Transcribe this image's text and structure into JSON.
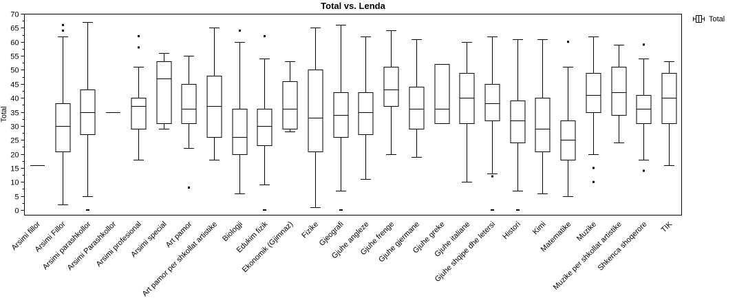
{
  "title": "Total vs. Lenda",
  "legend": {
    "label": "Total"
  },
  "chart_data": {
    "type": "boxplot",
    "title": "Total vs. Lenda",
    "xlabel": "",
    "ylabel": "Total",
    "ylim": [
      0,
      70
    ],
    "ytick_step": 5,
    "grid": false,
    "legend_position": "top-right",
    "categories": [
      "Arsimi fillor",
      "Arsimi Fillor",
      "Arsimi parashkollor",
      "Arsimi Parashkollor",
      "Arsimi profesional",
      "Arsimi special",
      "Art pamor",
      "Art pamor per shkollat artistike",
      "Biologji",
      "Edukim fizik",
      "Ekonomik (Gjimnaz)",
      "Fizike",
      "Gjeografi",
      "Gjuhe angleze",
      "Gjuhe frenge",
      "Gjuhe gjermane",
      "Gjuhe greke",
      "Gjuhe italiane",
      "Gjuhe shqipe dhe letersi",
      "Histori",
      "Kimi",
      "Matematike",
      "Muzike",
      "Muzike per shkollat artistike",
      "Shkenca shoqerore",
      "TIK"
    ],
    "series": [
      {
        "min": 16,
        "q1": 16,
        "median": 16,
        "q3": 16,
        "max": 16,
        "outliers": []
      },
      {
        "min": 2,
        "q1": 21,
        "median": 30,
        "q3": 38,
        "max": 62,
        "outliers": [
          66,
          64
        ]
      },
      {
        "min": 5,
        "q1": 27,
        "median": 35,
        "q3": 43,
        "max": 67,
        "outliers": [
          0
        ]
      },
      {
        "min": 35,
        "q1": 35,
        "median": 35,
        "q3": 35,
        "max": 35,
        "outliers": []
      },
      {
        "min": 18,
        "q1": 29,
        "median": 37,
        "q3": 40,
        "max": 51,
        "outliers": [
          62,
          58
        ]
      },
      {
        "min": 29,
        "q1": 31,
        "median": 47,
        "q3": 53,
        "max": 56,
        "outliers": []
      },
      {
        "min": 22,
        "q1": 31,
        "median": 36,
        "q3": 45,
        "max": 55,
        "outliers": [
          8
        ]
      },
      {
        "min": 18,
        "q1": 26,
        "median": 37,
        "q3": 48,
        "max": 65,
        "outliers": []
      },
      {
        "min": 6,
        "q1": 20,
        "median": 26,
        "q3": 36,
        "max": 60,
        "outliers": [
          64
        ]
      },
      {
        "min": 9,
        "q1": 23,
        "median": 30,
        "q3": 36,
        "max": 54,
        "outliers": [
          62,
          0
        ]
      },
      {
        "min": 28,
        "q1": 29,
        "median": 36,
        "q3": 46,
        "max": 53,
        "outliers": []
      },
      {
        "min": 1,
        "q1": 21,
        "median": 33,
        "q3": 50,
        "max": 65,
        "outliers": []
      },
      {
        "min": 7,
        "q1": 26,
        "median": 34,
        "q3": 42,
        "max": 66,
        "outliers": [
          0
        ]
      },
      {
        "min": 11,
        "q1": 27,
        "median": 35,
        "q3": 42,
        "max": 62,
        "outliers": []
      },
      {
        "min": 20,
        "q1": 37,
        "median": 43,
        "q3": 51,
        "max": 64,
        "outliers": []
      },
      {
        "min": 19,
        "q1": 29,
        "median": 36,
        "q3": 44,
        "max": 61,
        "outliers": []
      },
      {
        "min": 31,
        "q1": 31,
        "median": 36,
        "q3": 52,
        "max": 52,
        "outliers": []
      },
      {
        "min": 10,
        "q1": 31,
        "median": 40,
        "q3": 49,
        "max": 60,
        "outliers": []
      },
      {
        "min": 13,
        "q1": 32,
        "median": 38,
        "q3": 45,
        "max": 62,
        "outliers": [
          12,
          0
        ]
      },
      {
        "min": 7,
        "q1": 24,
        "median": 32,
        "q3": 39,
        "max": 61,
        "outliers": [
          0
        ]
      },
      {
        "min": 6,
        "q1": 21,
        "median": 29,
        "q3": 40,
        "max": 61,
        "outliers": []
      },
      {
        "min": 5,
        "q1": 18,
        "median": 25,
        "q3": 32,
        "max": 51,
        "outliers": [
          60
        ]
      },
      {
        "min": 20,
        "q1": 35,
        "median": 41,
        "q3": 49,
        "max": 62,
        "outliers": [
          15,
          10
        ]
      },
      {
        "min": 24,
        "q1": 34,
        "median": 42,
        "q3": 51,
        "max": 59,
        "outliers": []
      },
      {
        "min": 18,
        "q1": 31,
        "median": 36,
        "q3": 41,
        "max": 54,
        "outliers": [
          59,
          14
        ]
      },
      {
        "min": 16,
        "q1": 31,
        "median": 40,
        "q3": 49,
        "max": 53,
        "outliers": []
      }
    ]
  }
}
